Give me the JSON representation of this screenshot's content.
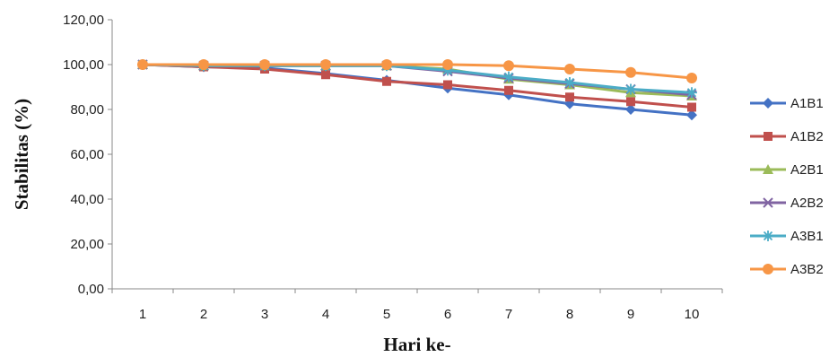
{
  "chart_data": {
    "type": "line",
    "xlabel": "Hari ke-",
    "ylabel": "Stabilitas (%)",
    "categories": [
      "1",
      "2",
      "3",
      "4",
      "5",
      "6",
      "7",
      "8",
      "9",
      "10"
    ],
    "yticks": [
      "0,00",
      "20,00",
      "40,00",
      "60,00",
      "80,00",
      "100,00",
      "120,00"
    ],
    "ylim": [
      0,
      120
    ],
    "grid": false,
    "legend_position": "right",
    "series": [
      {
        "name": "A1B1",
        "color": "#4472C4",
        "marker": "diamond",
        "values": [
          100,
          99,
          98.5,
          96,
          93,
          89.5,
          86.5,
          82.5,
          80,
          77.5
        ]
      },
      {
        "name": "A1B2",
        "color": "#C0504D",
        "marker": "square",
        "values": [
          100,
          99,
          98,
          95.5,
          92.5,
          91,
          88.5,
          85.5,
          83.5,
          81
        ]
      },
      {
        "name": "A2B1",
        "color": "#9BBB59",
        "marker": "triangle",
        "values": [
          100,
          99.5,
          99.5,
          99.5,
          99.5,
          98,
          93.5,
          91,
          87.5,
          86
        ]
      },
      {
        "name": "A2B2",
        "color": "#8064A2",
        "marker": "x",
        "values": [
          100,
          99.5,
          99.5,
          99.5,
          99.5,
          97,
          94,
          91.5,
          89,
          86.5
        ]
      },
      {
        "name": "A3B1",
        "color": "#4BACC6",
        "marker": "star",
        "values": [
          100,
          99.5,
          99.5,
          99.5,
          99.5,
          97.5,
          94.5,
          92,
          89,
          87.5
        ]
      },
      {
        "name": "A3B2",
        "color": "#F79646",
        "marker": "circle",
        "values": [
          100,
          100,
          100,
          100,
          100,
          100,
          99.5,
          98,
          96.5,
          94
        ]
      }
    ]
  }
}
